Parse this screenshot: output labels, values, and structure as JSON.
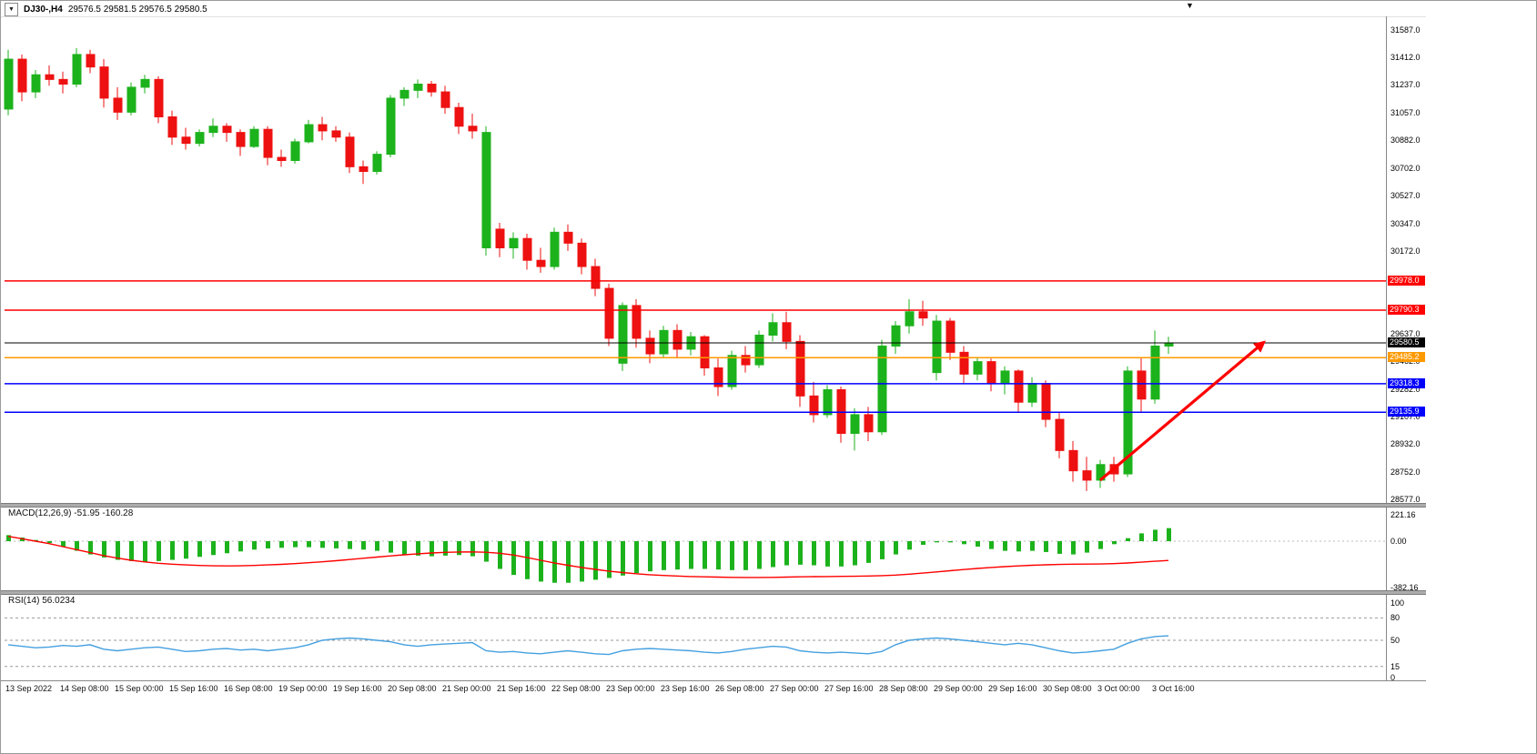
{
  "header": {
    "symbol_label": "DJ30-,H4",
    "ohlc": "29576.5 29581.5 29576.5 29580.5"
  },
  "icons": {
    "dropdown": "▼",
    "shift_marker": "▼"
  },
  "colors": {
    "bull": "#1CB21C",
    "bear": "#EE1111",
    "signal": "#FF0000",
    "rsi": "#44A0E0",
    "axis_text": "#000000"
  },
  "chart_data": [
    {
      "type": "candlestick",
      "title": "DJ30-,H4",
      "symbol": "DJ30-",
      "timeframe": "H4",
      "y_axis": {
        "min": 28577,
        "max": 31587,
        "ticks": [
          "31587.0",
          "31412.0",
          "31237.0",
          "31057.0",
          "30882.0",
          "30702.0",
          "30527.0",
          "30347.0",
          "30172.0",
          "29637.0",
          "29462.0",
          "29282.0",
          "29107.0",
          "28932.0",
          "28752.0",
          "28577.0"
        ]
      },
      "x_labels": [
        "13 Sep 2022",
        "14 Sep 08:00",
        "15 Sep 00:00",
        "15 Sep 16:00",
        "16 Sep 08:00",
        "19 Sep 00:00",
        "19 Sep 16:00",
        "20 Sep 08:00",
        "21 Sep 00:00",
        "21 Sep 16:00",
        "22 Sep 08:00",
        "23 Sep 00:00",
        "23 Sep 16:00",
        "26 Sep 08:00",
        "27 Sep 00:00",
        "27 Sep 16:00",
        "28 Sep 08:00",
        "29 Sep 00:00",
        "29 Sep 16:00",
        "30 Sep 08:00",
        "3 Oct 00:00",
        "3 Oct 16:00"
      ],
      "bars_per_x_label": 4,
      "candles": [
        [
          31080,
          31460,
          31040,
          31400
        ],
        [
          31400,
          31430,
          31130,
          31190
        ],
        [
          31190,
          31330,
          31150,
          31300
        ],
        [
          31300,
          31360,
          31230,
          31270
        ],
        [
          31270,
          31320,
          31180,
          31240
        ],
        [
          31240,
          31470,
          31220,
          31430
        ],
        [
          31430,
          31460,
          31310,
          31350
        ],
        [
          31350,
          31400,
          31090,
          31150
        ],
        [
          31150,
          31220,
          31010,
          31060
        ],
        [
          31060,
          31250,
          31040,
          31220
        ],
        [
          31220,
          31300,
          31180,
          31270
        ],
        [
          31270,
          31290,
          30990,
          31030
        ],
        [
          31030,
          31070,
          30850,
          30900
        ],
        [
          30900,
          30960,
          30820,
          30860
        ],
        [
          30860,
          30950,
          30840,
          30930
        ],
        [
          30930,
          31020,
          30900,
          30970
        ],
        [
          30970,
          30990,
          30870,
          30930
        ],
        [
          30930,
          30950,
          30780,
          30840
        ],
        [
          30840,
          30970,
          30830,
          30950
        ],
        [
          30950,
          30970,
          30720,
          30770
        ],
        [
          30770,
          30820,
          30710,
          30750
        ],
        [
          30750,
          30890,
          30730,
          30870
        ],
        [
          30870,
          31010,
          30860,
          30980
        ],
        [
          30980,
          31030,
          30880,
          30940
        ],
        [
          30940,
          30970,
          30870,
          30900
        ],
        [
          30900,
          30930,
          30670,
          30710
        ],
        [
          30710,
          30750,
          30600,
          30680
        ],
        [
          30680,
          30810,
          30660,
          30790
        ],
        [
          30790,
          31170,
          30770,
          31150
        ],
        [
          31150,
          31220,
          31100,
          31200
        ],
        [
          31200,
          31270,
          31150,
          31240
        ],
        [
          31240,
          31260,
          31160,
          31190
        ],
        [
          31190,
          31230,
          31050,
          31090
        ],
        [
          31090,
          31120,
          30920,
          30970
        ],
        [
          30970,
          31050,
          30890,
          30940
        ],
        [
          30190,
          30970,
          30140,
          30930
        ],
        [
          30310,
          30350,
          30130,
          30190
        ],
        [
          30190,
          30290,
          30120,
          30250
        ],
        [
          30250,
          30280,
          30050,
          30110
        ],
        [
          30110,
          30190,
          30030,
          30070
        ],
        [
          30070,
          30320,
          30050,
          30290
        ],
        [
          30290,
          30340,
          30170,
          30220
        ],
        [
          30220,
          30250,
          30020,
          30070
        ],
        [
          30070,
          30120,
          29880,
          29930
        ],
        [
          29930,
          29960,
          29560,
          29610
        ],
        [
          29450,
          29840,
          29400,
          29820
        ],
        [
          29820,
          29860,
          29550,
          29610
        ],
        [
          29610,
          29660,
          29450,
          29510
        ],
        [
          29510,
          29690,
          29490,
          29660
        ],
        [
          29660,
          29700,
          29490,
          29540
        ],
        [
          29540,
          29650,
          29500,
          29620
        ],
        [
          29620,
          29630,
          29370,
          29420
        ],
        [
          29420,
          29480,
          29240,
          29300
        ],
        [
          29300,
          29530,
          29280,
          29500
        ],
        [
          29500,
          29560,
          29390,
          29440
        ],
        [
          29440,
          29660,
          29420,
          29630
        ],
        [
          29630,
          29770,
          29590,
          29710
        ],
        [
          29710,
          29780,
          29540,
          29590
        ],
        [
          29590,
          29630,
          29170,
          29240
        ],
        [
          29240,
          29330,
          29070,
          29120
        ],
        [
          29120,
          29310,
          29100,
          29280
        ],
        [
          29280,
          29300,
          28940,
          29000
        ],
        [
          29000,
          29160,
          28890,
          29120
        ],
        [
          29120,
          29170,
          28950,
          29010
        ],
        [
          29010,
          29600,
          28990,
          29560
        ],
        [
          29560,
          29720,
          29510,
          29690
        ],
        [
          29690,
          29860,
          29640,
          29780
        ],
        [
          29780,
          29850,
          29690,
          29740
        ],
        [
          29390,
          29760,
          29340,
          29720
        ],
        [
          29720,
          29740,
          29470,
          29520
        ],
        [
          29520,
          29560,
          29320,
          29380
        ],
        [
          29380,
          29490,
          29340,
          29460
        ],
        [
          29460,
          29480,
          29270,
          29320
        ],
        [
          29320,
          29430,
          29250,
          29400
        ],
        [
          29400,
          29410,
          29140,
          29200
        ],
        [
          29200,
          29360,
          29170,
          29320
        ],
        [
          29320,
          29340,
          29040,
          29090
        ],
        [
          29090,
          29140,
          28840,
          28890
        ],
        [
          28890,
          28950,
          28690,
          28760
        ],
        [
          28760,
          28850,
          28630,
          28700
        ],
        [
          28700,
          28830,
          28650,
          28800
        ],
        [
          28800,
          28850,
          28690,
          28740
        ],
        [
          28740,
          29430,
          28720,
          29400
        ],
        [
          29400,
          29490,
          29140,
          29220
        ],
        [
          29220,
          29660,
          29190,
          29560
        ],
        [
          29560,
          29620,
          29510,
          29580
        ]
      ],
      "hlines": [
        {
          "price": 29978.0,
          "label": "29978.0",
          "color": "#FF0000",
          "role": "resistance-line"
        },
        {
          "price": 29790.3,
          "label": "29790.3",
          "color": "#FF0000",
          "role": "resistance-line"
        },
        {
          "price": 29580.5,
          "label": "29580.5",
          "color": "#000000",
          "role": "current-price-line"
        },
        {
          "price": 29485.2,
          "label": "29485.2",
          "color": "#FF9900",
          "role": "pivot-line"
        },
        {
          "price": 29318.3,
          "label": "29318.3",
          "color": "#0000FF",
          "role": "support-line"
        },
        {
          "price": 29135.9,
          "label": "29135.9",
          "color": "#0000FF",
          "role": "support-line"
        }
      ],
      "arrow": {
        "from_bar": 80,
        "from_price": 28700,
        "to_bar": 92,
        "to_price": 29585,
        "color": "#FF0000"
      }
    },
    {
      "type": "bar",
      "name": "MACD",
      "label": "MACD(12,26,9) -51.95 -160.28",
      "macd_value": -51.95,
      "signal_value": -160.28,
      "y_ticks": [
        "221.16",
        "0.00",
        "-382.16"
      ],
      "histogram": [
        50,
        30,
        10,
        -15,
        -45,
        -80,
        -110,
        -135,
        -155,
        -165,
        -170,
        -165,
        -155,
        -145,
        -130,
        -115,
        -100,
        -85,
        -70,
        -60,
        -55,
        -50,
        -50,
        -55,
        -60,
        -65,
        -70,
        -80,
        -95,
        -110,
        -120,
        -125,
        -120,
        -115,
        -125,
        -170,
        -230,
        -280,
        -315,
        -335,
        -345,
        -345,
        -335,
        -320,
        -305,
        -285,
        -265,
        -250,
        -240,
        -235,
        -230,
        -230,
        -235,
        -240,
        -240,
        -230,
        -215,
        -200,
        -195,
        -200,
        -210,
        -210,
        -200,
        -180,
        -150,
        -110,
        -70,
        -30,
        -10,
        -10,
        -25,
        -45,
        -65,
        -80,
        -85,
        -80,
        -90,
        -105,
        -110,
        -95,
        -65,
        -25,
        25,
        65,
        95,
        108
      ],
      "signal": [
        40,
        20,
        0,
        -20,
        -45,
        -70,
        -95,
        -120,
        -140,
        -158,
        -172,
        -183,
        -191,
        -197,
        -201,
        -204,
        -205,
        -204,
        -201,
        -197,
        -192,
        -186,
        -179,
        -171,
        -162,
        -152,
        -142,
        -132,
        -122,
        -113,
        -105,
        -98,
        -93,
        -90,
        -89,
        -92,
        -100,
        -115,
        -135,
        -158,
        -180,
        -200,
        -218,
        -234,
        -248,
        -260,
        -270,
        -278,
        -284,
        -289,
        -293,
        -296,
        -298,
        -300,
        -301,
        -301,
        -300,
        -298,
        -296,
        -294,
        -293,
        -292,
        -291,
        -289,
        -286,
        -281,
        -274,
        -265,
        -255,
        -245,
        -235,
        -226,
        -218,
        -211,
        -205,
        -200,
        -196,
        -193,
        -191,
        -190,
        -189,
        -186,
        -181,
        -174,
        -167,
        -160
      ]
    },
    {
      "type": "line",
      "name": "RSI",
      "label": "RSI(14) 56.0234",
      "value": 56.0234,
      "levels": [
        80,
        50,
        15
      ],
      "y_ticks": [
        "100",
        "80",
        "50",
        "15",
        "0"
      ],
      "values": [
        44,
        42,
        40,
        41,
        43,
        42,
        44,
        38,
        36,
        38,
        40,
        41,
        38,
        35,
        36,
        38,
        39,
        37,
        38,
        36,
        38,
        40,
        44,
        50,
        52,
        53,
        52,
        50,
        48,
        44,
        42,
        44,
        45,
        46,
        47,
        36,
        34,
        35,
        33,
        32,
        34,
        36,
        34,
        32,
        31,
        36,
        38,
        39,
        38,
        37,
        36,
        34,
        33,
        35,
        38,
        40,
        42,
        41,
        36,
        34,
        33,
        34,
        33,
        32,
        35,
        44,
        50,
        52,
        53,
        52,
        50,
        48,
        46,
        44,
        46,
        44,
        40,
        36,
        33,
        34,
        36,
        38,
        46,
        52,
        55,
        56
      ]
    }
  ]
}
